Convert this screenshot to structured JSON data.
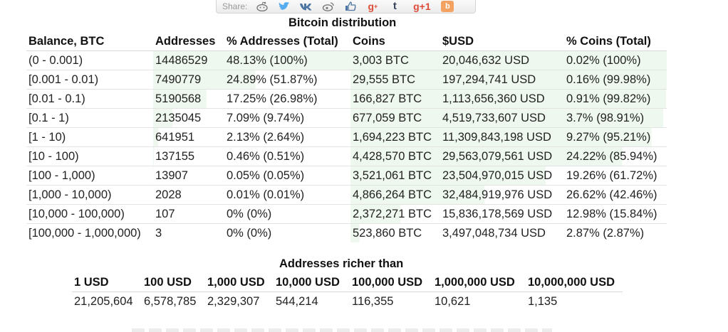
{
  "share": {
    "label": "Share:",
    "icons": [
      "reddit-icon",
      "twitter-icon",
      "vk-icon",
      "weibo-icon",
      "like-icon",
      "googleplus-icon",
      "tumblr-icon",
      "gplus-one-icon",
      "blogger-icon"
    ],
    "gplus_text": "g+1",
    "blog_text": "b",
    "colors": {
      "twitter": "#55acee",
      "vk": "#4c75a3",
      "googleplus": "#dd4b39",
      "tumblr": "#35465c",
      "blogger": "#f4a261"
    }
  },
  "distribution": {
    "title": "Bitcoin distribution",
    "bar_color": "#eef8ee",
    "headers": [
      "Balance, BTC",
      "Addresses",
      "% Addresses (Total)",
      "Coins",
      "$USD",
      "% Coins (Total)"
    ],
    "rows": [
      {
        "balance": "(0 - 0.001)",
        "addresses": "14486529",
        "pct_addr": "48.13% (100%)",
        "coins": "3,003 BTC",
        "usd": "20,046,632 USD",
        "pct_coins": "0.02% (100%)",
        "addr_share": 100,
        "coins_share": 100
      },
      {
        "balance": "[0.001 - 0.01)",
        "addresses": "7490779",
        "pct_addr": "24.89% (51.87%)",
        "coins": "29,555 BTC",
        "usd": "197,294,741 USD",
        "pct_coins": "0.16% (99.98%)",
        "addr_share": 51.87,
        "coins_share": 99.98
      },
      {
        "balance": "[0.01 - 0.1)",
        "addresses": "5190568",
        "pct_addr": "17.25% (26.98%)",
        "coins": "166,827 BTC",
        "usd": "1,113,656,360 USD",
        "pct_coins": "0.91% (99.82%)",
        "addr_share": 26.98,
        "coins_share": 99.82
      },
      {
        "balance": "[0.1 - 1)",
        "addresses": "2135045",
        "pct_addr": "7.09% (9.74%)",
        "coins": "677,059 BTC",
        "usd": "4,519,733,607 USD",
        "pct_coins": "3.7% (98.91%)",
        "addr_share": 9.74,
        "coins_share": 98.91
      },
      {
        "balance": "[1 - 10)",
        "addresses": "641951",
        "pct_addr": "2.13% (2.64%)",
        "coins": "1,694,223 BTC",
        "usd": "11,309,843,198 USD",
        "pct_coins": "9.27% (95.21%)",
        "addr_share": 2.64,
        "coins_share": 95.21
      },
      {
        "balance": "[10 - 100)",
        "addresses": "137155",
        "pct_addr": "0.46% (0.51%)",
        "coins": "4,428,570 BTC",
        "usd": "29,563,079,561 USD",
        "pct_coins": "24.22% (85.94%)",
        "addr_share": 0.51,
        "coins_share": 85.94
      },
      {
        "balance": "[100 - 1,000)",
        "addresses": "13907",
        "pct_addr": "0.05% (0.05%)",
        "coins": "3,521,061 BTC",
        "usd": "23,504,970,015 USD",
        "pct_coins": "19.26% (61.72%)",
        "addr_share": 0.05,
        "coins_share": 61.72
      },
      {
        "balance": "[1,000 - 10,000)",
        "addresses": "2028",
        "pct_addr": "0.01% (0.01%)",
        "coins": "4,866,264 BTC",
        "usd": "32,484,919,976 USD",
        "pct_coins": "26.62% (42.46%)",
        "addr_share": 0.01,
        "coins_share": 42.46
      },
      {
        "balance": "[10,000 - 100,000)",
        "addresses": "107",
        "pct_addr": "0% (0%)",
        "coins": "2,372,271 BTC",
        "usd": "15,836,178,569 USD",
        "pct_coins": "12.98% (15.84%)",
        "addr_share": 0,
        "coins_share": 15.84
      },
      {
        "balance": "[100,000 - 1,000,000)",
        "addresses": "3",
        "pct_addr": "0% (0%)",
        "coins": "523,860 BTC",
        "usd": "3,497,048,734 USD",
        "pct_coins": "2.87% (2.87%)",
        "addr_share": 0,
        "coins_share": 2.87
      }
    ]
  },
  "richer": {
    "title": "Addresses richer than",
    "headers": [
      "1 USD",
      "100 USD",
      "1,000 USD",
      "10,000 USD",
      "100,000 USD",
      "1,000,000 USD",
      "10,000,000 USD"
    ],
    "values": [
      "21,205,604",
      "6,578,785",
      "2,329,307",
      "544,214",
      "116,355",
      "10,621",
      "1,135"
    ]
  }
}
